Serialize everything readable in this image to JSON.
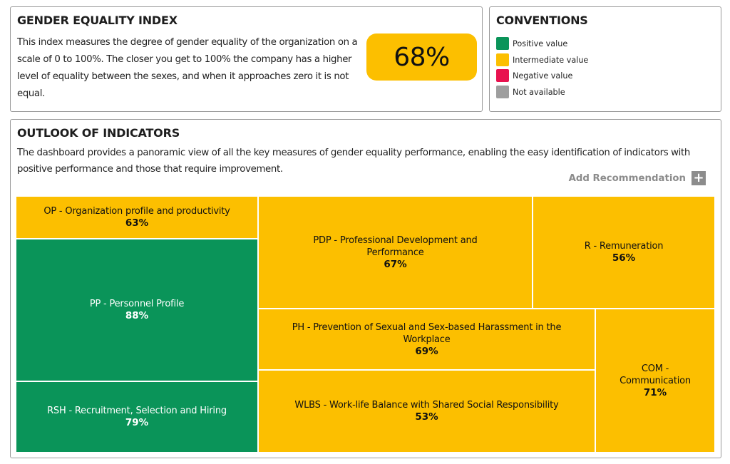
{
  "gender_equality_index": {
    "title": "GENDER EQUALITY INDEX",
    "description": "This index measures the degree of gender equality of the organization on a scale of 0 to 100%. The closer you get to 100% the company has a higher level of equality between the sexes, and when it approaches zero it is not equal.",
    "value": "68%"
  },
  "conventions": {
    "title": "CONVENTIONS",
    "items": [
      {
        "label": "Positive value",
        "color": "#0a9459"
      },
      {
        "label": "Intermediate value",
        "color": "#fcbf00"
      },
      {
        "label": "Negative value",
        "color": "#e8124f"
      },
      {
        "label": "Not available",
        "color": "#9e9e9e"
      }
    ]
  },
  "outlook": {
    "title": "OUTLOOK OF INDICATORS",
    "description": "The dashboard provides a panoramic view of all the key measures of gender equality performance, enabling the easy identification of indicators with positive performance and those that require improvement.",
    "add_recommendation_label": "Add Recommendation",
    "add_recommendation_icon": "+",
    "indicators": [
      {
        "name": "OP - Organization profile and productivity",
        "value": "63%",
        "status": "intermediate"
      },
      {
        "name": "PP - Personnel Profile",
        "value": "88%",
        "status": "positive"
      },
      {
        "name": "RSH - Recruitment, Selection and Hiring",
        "value": "79%",
        "status": "positive"
      },
      {
        "name": "PDP - Professional Development and Performance",
        "value": "67%",
        "status": "intermediate"
      },
      {
        "name": "R - Remuneration",
        "value": "56%",
        "status": "intermediate"
      },
      {
        "name": "PH - Prevention of Sexual and Sex-based Harassment in the Workplace",
        "value": "69%",
        "status": "intermediate"
      },
      {
        "name": "WLBS - Work-life Balance with Shared Social Responsibility",
        "value": "53%",
        "status": "intermediate"
      },
      {
        "name": "COM - Communication",
        "value": "71%",
        "status": "intermediate"
      }
    ]
  },
  "colors": {
    "positive": "#0a9459",
    "intermediate": "#fcbf00",
    "negative": "#e8124f",
    "not_available": "#9e9e9e"
  }
}
